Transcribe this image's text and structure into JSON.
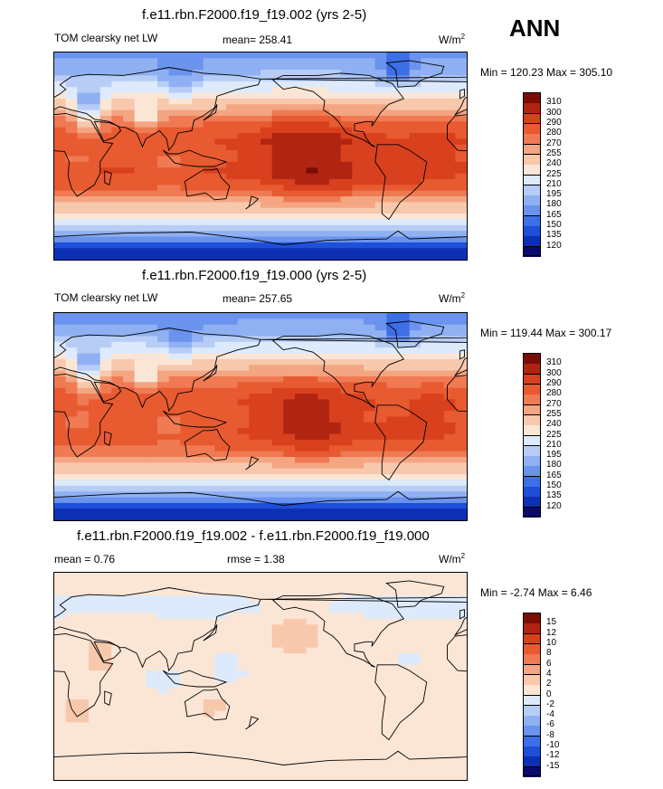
{
  "season": "ANN",
  "panels": [
    {
      "title": "f.e11.rbn.F2000.f19_f19.002 (yrs 2-5)",
      "left_label": "TOM clearsky net LW",
      "mean_label": "mean= 258.41",
      "stat_label": "",
      "units_base": "W/m",
      "units_exp": "2",
      "minmax": "Min = 120.23 Max = 305.10"
    },
    {
      "title": "f.e11.rbn.F2000.f19_f19.000 (yrs 2-5)",
      "left_label": "TOM clearsky net LW",
      "mean_label": "mean= 257.65",
      "stat_label": "",
      "units_base": "W/m",
      "units_exp": "2",
      "minmax": "Min = 119.44 Max = 300.17"
    },
    {
      "title": "f.e11.rbn.F2000.f19_f19.002 - f.e11.rbn.F2000.f19_f19.000",
      "left_label": "mean =   0.76",
      "mean_label": "rmse =   1.38",
      "stat_label": "",
      "units_base": "W/m",
      "units_exp": "2",
      "minmax": "Min =  -2.74 Max =   6.46"
    }
  ],
  "chart_data": [
    {
      "type": "heatmap",
      "title": "f.e11.rbn.F2000.f19_f19.002 (yrs 2-5)",
      "variable": "TOM clearsky net LW",
      "units": "W/m2",
      "mean": 258.41,
      "min": 120.23,
      "max": 305.1,
      "levels": [
        120,
        135,
        150,
        165,
        180,
        195,
        210,
        225,
        240,
        255,
        270,
        280,
        290,
        300,
        310
      ],
      "colors": [
        "#0a0a6e",
        "#0c2fb4",
        "#1d4fd8",
        "#3d6fe6",
        "#6a93ee",
        "#8fb0f2",
        "#b7cdf6",
        "#ddeafb",
        "#fbe6d6",
        "#f8c8ad",
        "#f4a582",
        "#ef7a53",
        "#e85a30",
        "#d9401e",
        "#b02512",
        "#7a0d05"
      ],
      "lat_profile": [
        {
          "lat": 90,
          "value": 175
        },
        {
          "lat": 75,
          "value": 190
        },
        {
          "lat": 60,
          "value": 218
        },
        {
          "lat": 45,
          "value": 250
        },
        {
          "lat": 30,
          "value": 278
        },
        {
          "lat": 15,
          "value": 290
        },
        {
          "lat": 0,
          "value": 286
        },
        {
          "lat": -15,
          "value": 291
        },
        {
          "lat": -30,
          "value": 279
        },
        {
          "lat": -45,
          "value": 248
        },
        {
          "lat": -60,
          "value": 212
        },
        {
          "lat": -70,
          "value": 180
        },
        {
          "lat": -80,
          "value": 135
        },
        {
          "lat": -90,
          "value": 122
        }
      ]
    },
    {
      "type": "heatmap",
      "title": "f.e11.rbn.F2000.f19_f19.000 (yrs 2-5)",
      "variable": "TOM clearsky net LW",
      "units": "W/m2",
      "mean": 257.65,
      "min": 119.44,
      "max": 300.17,
      "levels": [
        120,
        135,
        150,
        165,
        180,
        195,
        210,
        225,
        240,
        255,
        270,
        280,
        290,
        300,
        310
      ],
      "colors": [
        "#0a0a6e",
        "#0c2fb4",
        "#1d4fd8",
        "#3d6fe6",
        "#6a93ee",
        "#8fb0f2",
        "#b7cdf6",
        "#ddeafb",
        "#fbe6d6",
        "#f8c8ad",
        "#f4a582",
        "#ef7a53",
        "#e85a30",
        "#d9401e",
        "#b02512",
        "#7a0d05"
      ],
      "lat_profile": [
        {
          "lat": 90,
          "value": 172
        },
        {
          "lat": 75,
          "value": 188
        },
        {
          "lat": 60,
          "value": 216
        },
        {
          "lat": 45,
          "value": 249
        },
        {
          "lat": 30,
          "value": 277
        },
        {
          "lat": 15,
          "value": 288
        },
        {
          "lat": 0,
          "value": 284
        },
        {
          "lat": -15,
          "value": 289
        },
        {
          "lat": -30,
          "value": 278
        },
        {
          "lat": -45,
          "value": 247
        },
        {
          "lat": -60,
          "value": 210
        },
        {
          "lat": -70,
          "value": 178
        },
        {
          "lat": -80,
          "value": 134
        },
        {
          "lat": -90,
          "value": 121
        }
      ]
    },
    {
      "type": "heatmap",
      "title": "f.e11.rbn.F2000.f19_f19.002 - f.e11.rbn.F2000.f19_f19.000",
      "units": "W/m2",
      "mean": 0.76,
      "rmse": 1.38,
      "min": -2.74,
      "max": 6.46,
      "levels": [
        -15,
        -12,
        -10,
        -8,
        -6,
        -4,
        -2,
        0,
        2,
        4,
        6,
        8,
        10,
        12,
        15
      ],
      "colors": [
        "#0a0a6e",
        "#0c2fb4",
        "#1d4fd8",
        "#3d6fe6",
        "#6a93ee",
        "#8fb0f2",
        "#b7cdf6",
        "#ddeafb",
        "#fbe6d6",
        "#f8c8ad",
        "#f4a582",
        "#ef7a53",
        "#e85a30",
        "#d9401e",
        "#b02512",
        "#7a0d05"
      ],
      "lat_profile": [
        {
          "lat": 90,
          "value": 1.0
        },
        {
          "lat": 60,
          "value": -0.5
        },
        {
          "lat": 30,
          "value": 1.5
        },
        {
          "lat": 0,
          "value": 0.5
        },
        {
          "lat": -30,
          "value": 1.0
        },
        {
          "lat": -60,
          "value": 0.5
        },
        {
          "lat": -90,
          "value": 1.0
        }
      ]
    }
  ]
}
